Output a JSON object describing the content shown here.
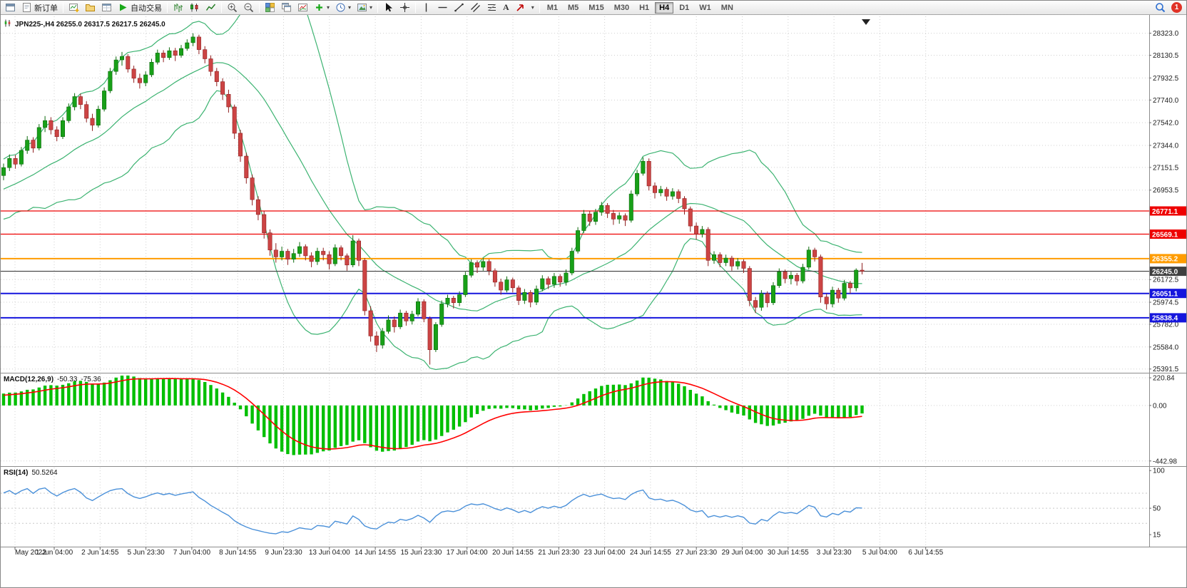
{
  "toolbar": {
    "new_order_label": "新订单",
    "auto_trading_label": "自动交易",
    "timeframes": [
      "M1",
      "M5",
      "M15",
      "M30",
      "H1",
      "H4",
      "D1",
      "W1",
      "MN"
    ],
    "active_timeframe": "H4",
    "notification_count": "1"
  },
  "chart": {
    "title": "JPN225-,H4 26255.0 26317.5 26217.5 26245.0"
  },
  "indicators": {
    "macd": {
      "name": "MACD(12,26,9)",
      "value_main": "-50.33",
      "value_signal": "-75.36",
      "axis": [
        "220.84",
        "0.00",
        "-442.98"
      ]
    },
    "rsi": {
      "name": "RSI(14)",
      "value": "50.5264",
      "axis": [
        "100",
        "50",
        "15"
      ],
      "levels": [
        70,
        50,
        30
      ]
    }
  },
  "chart_data": {
    "type": "candlestick",
    "symbol": "JPN225-",
    "timeframe": "H4",
    "last_ohlc": {
      "open": 26255.0,
      "high": 26317.5,
      "low": 26217.5,
      "close": 26245.0
    },
    "price_max": 28470,
    "price_min": 25365,
    "visible_from": 20,
    "price_axis": [
      "28323.0",
      "28130.5",
      "27932.5",
      "27740.0",
      "27542.0",
      "27344.0",
      "27151.5",
      "26953.5",
      "26172.5",
      "25974.5",
      "25782.0",
      "25584.0",
      "25391.5"
    ],
    "hlines": [
      {
        "value": 26771.1,
        "label": "26771.1",
        "color": "#ee0000",
        "width": 1.2
      },
      {
        "value": 26569.1,
        "label": "26569.1",
        "color": "#ee0000",
        "width": 1.2
      },
      {
        "value": 26355.2,
        "label": "26355.2",
        "color": "#ff9c00",
        "width": 2
      },
      {
        "value": 26245.0,
        "label": "26245.0",
        "color": "#3f3f3f",
        "width": 1.2
      },
      {
        "value": 26051.1,
        "label": "26051.1",
        "color": "#1515dd",
        "width": 2
      },
      {
        "value": 25838.4,
        "label": "25838.4",
        "color": "#1515dd",
        "width": 2
      }
    ],
    "time_labels": [
      "May 2022",
      "1 Jun 04:00",
      "2 Jun 14:55",
      "5 Jun 23:30",
      "7 Jun 04:00",
      "8 Jun 14:55",
      "9 Jun 23:30",
      "13 Jun 04:00",
      "14 Jun 14:55",
      "15 Jun 23:30",
      "17 Jun 04:00",
      "20 Jun 14:55",
      "21 Jun 23:30",
      "23 Jun 04:00",
      "24 Jun 14:55",
      "27 Jun 23:30",
      "29 Jun 04:00",
      "30 Jun 14:55",
      "3 Jul 23:30",
      "5 Jul 04:00",
      "6 Jul 14:55"
    ],
    "colors": {
      "bull": "#18a018",
      "bull_stroke": "#0c6b0c",
      "bear": "#cc4444",
      "bear_stroke": "#8f2020",
      "bollinger": "#3cb371",
      "macd_hist": "#00bf00",
      "macd_signal": "#ff0000",
      "rsi": "#4a90d9",
      "grid": "#d0d0d0",
      "axis_text": "#1c1c1c"
    },
    "ohlc": [
      [
        26700,
        26760,
        26660,
        26730
      ],
      [
        26730,
        26790,
        26700,
        26760
      ],
      [
        26760,
        26800,
        26690,
        26720
      ],
      [
        26720,
        26810,
        26700,
        26790
      ],
      [
        26790,
        26860,
        26760,
        26840
      ],
      [
        26840,
        26870,
        26760,
        26800
      ],
      [
        26800,
        26890,
        26780,
        26870
      ],
      [
        26870,
        26940,
        26850,
        26920
      ],
      [
        26920,
        26950,
        26840,
        26880
      ],
      [
        26880,
        26960,
        26860,
        26940
      ],
      [
        26940,
        27010,
        26910,
        26990
      ],
      [
        26990,
        27020,
        26900,
        26950
      ],
      [
        26950,
        27040,
        26930,
        27020
      ],
      [
        27020,
        27090,
        27000,
        27070
      ],
      [
        27070,
        27100,
        26990,
        27030
      ],
      [
        27030,
        27110,
        27010,
        27090
      ],
      [
        27090,
        27160,
        27060,
        27140
      ],
      [
        27140,
        27170,
        27040,
        27080
      ],
      [
        27080,
        27150,
        27050,
        27120
      ],
      [
        27120,
        27160,
        27030,
        27080
      ],
      [
        27080,
        27185,
        27040,
        27150
      ],
      [
        27150,
        27265,
        27120,
        27230
      ],
      [
        27230,
        27260,
        27140,
        27180
      ],
      [
        27180,
        27330,
        27160,
        27300
      ],
      [
        27300,
        27425,
        27270,
        27390
      ],
      [
        27390,
        27415,
        27280,
        27320
      ],
      [
        27320,
        27530,
        27300,
        27500
      ],
      [
        27500,
        27600,
        27460,
        27560
      ],
      [
        27560,
        27590,
        27440,
        27480
      ],
      [
        27480,
        27510,
        27380,
        27420
      ],
      [
        27420,
        27590,
        27400,
        27560
      ],
      [
        27560,
        27710,
        27540,
        27680
      ],
      [
        27680,
        27800,
        27650,
        27770
      ],
      [
        27770,
        27795,
        27660,
        27700
      ],
      [
        27700,
        27730,
        27545,
        27580
      ],
      [
        27580,
        27620,
        27470,
        27520
      ],
      [
        27520,
        27690,
        27500,
        27660
      ],
      [
        27660,
        27850,
        27640,
        27820
      ],
      [
        27820,
        28020,
        27800,
        27990
      ],
      [
        27990,
        28120,
        27960,
        28090
      ],
      [
        28090,
        28160,
        28040,
        28120
      ],
      [
        28120,
        28140,
        27980,
        28010
      ],
      [
        28010,
        28040,
        27890,
        27930
      ],
      [
        27930,
        27970,
        27840,
        27890
      ],
      [
        27890,
        27990,
        27860,
        27960
      ],
      [
        27960,
        28100,
        27940,
        28070
      ],
      [
        28070,
        28180,
        28050,
        28150
      ],
      [
        28150,
        28175,
        28070,
        28110
      ],
      [
        28110,
        28200,
        28090,
        28170
      ],
      [
        28170,
        28195,
        28080,
        28130
      ],
      [
        28130,
        28220,
        28110,
        28190
      ],
      [
        28190,
        28270,
        28170,
        28240
      ],
      [
        28240,
        28323,
        28210,
        28290
      ],
      [
        28290,
        28310,
        28140,
        28180
      ],
      [
        28180,
        28210,
        28060,
        28100
      ],
      [
        28100,
        28130,
        27950,
        27990
      ],
      [
        27990,
        28020,
        27860,
        27900
      ],
      [
        27900,
        27930,
        27740,
        27790
      ],
      [
        27790,
        27830,
        27630,
        27680
      ],
      [
        27680,
        27700,
        27400,
        27450
      ],
      [
        27450,
        27480,
        27200,
        27250
      ],
      [
        27250,
        27280,
        27010,
        27060
      ],
      [
        27060,
        27090,
        26820,
        26870
      ],
      [
        26870,
        26900,
        26690,
        26740
      ],
      [
        26740,
        26770,
        26530,
        26580
      ],
      [
        26580,
        26610,
        26380,
        26430
      ],
      [
        26430,
        26490,
        26320,
        26370
      ],
      [
        26370,
        26460,
        26340,
        26420
      ],
      [
        26420,
        26440,
        26300,
        26350
      ],
      [
        26350,
        26440,
        26320,
        26400
      ],
      [
        26400,
        26500,
        26370,
        26460
      ],
      [
        26460,
        26480,
        26340,
        26380
      ],
      [
        26380,
        26410,
        26280,
        26330
      ],
      [
        26330,
        26450,
        26300,
        26420
      ],
      [
        26420,
        26450,
        26340,
        26390
      ],
      [
        26390,
        26420,
        26260,
        26310
      ],
      [
        26310,
        26480,
        26290,
        26450
      ],
      [
        26450,
        26470,
        26340,
        26380
      ],
      [
        26380,
        26400,
        26250,
        26300
      ],
      [
        26300,
        26560,
        26280,
        26510
      ],
      [
        26510,
        26530,
        26290,
        26340
      ],
      [
        26340,
        26360,
        25860,
        25900
      ],
      [
        25900,
        25940,
        25630,
        25680
      ],
      [
        25680,
        25720,
        25540,
        25600
      ],
      [
        25600,
        25750,
        25570,
        25720
      ],
      [
        25720,
        25860,
        25700,
        25820
      ],
      [
        25820,
        25850,
        25710,
        25760
      ],
      [
        25760,
        25910,
        25740,
        25880
      ],
      [
        25880,
        25900,
        25770,
        25810
      ],
      [
        25810,
        25900,
        25780,
        25870
      ],
      [
        25870,
        26010,
        25850,
        25980
      ],
      [
        25980,
        26000,
        25800,
        25830
      ],
      [
        25830,
        25850,
        25430,
        25560
      ],
      [
        25560,
        25800,
        25540,
        25780
      ],
      [
        25780,
        25990,
        25760,
        25960
      ],
      [
        25960,
        26040,
        25930,
        26010
      ],
      [
        26010,
        26030,
        25920,
        25970
      ],
      [
        25970,
        26070,
        25940,
        26040
      ],
      [
        26040,
        26240,
        26020,
        26210
      ],
      [
        26210,
        26350,
        26190,
        26320
      ],
      [
        26320,
        26340,
        26230,
        26280
      ],
      [
        26280,
        26360,
        26250,
        26330
      ],
      [
        26330,
        26350,
        26210,
        26250
      ],
      [
        26250,
        26270,
        26110,
        26150
      ],
      [
        26150,
        26180,
        26040,
        26080
      ],
      [
        26080,
        26200,
        26060,
        26170
      ],
      [
        26170,
        26190,
        26060,
        26100
      ],
      [
        26100,
        26120,
        25950,
        25990
      ],
      [
        25990,
        26090,
        25960,
        26060
      ],
      [
        26060,
        26080,
        25930,
        25975
      ],
      [
        25975,
        26120,
        25950,
        26090
      ],
      [
        26090,
        26210,
        26070,
        26180
      ],
      [
        26180,
        26200,
        26090,
        26130
      ],
      [
        26130,
        26230,
        26100,
        26200
      ],
      [
        26200,
        26220,
        26110,
        26150
      ],
      [
        26150,
        26260,
        26120,
        26230
      ],
      [
        26230,
        26450,
        26210,
        26420
      ],
      [
        26420,
        26630,
        26400,
        26600
      ],
      [
        26600,
        26780,
        26580,
        26745
      ],
      [
        26745,
        26770,
        26640,
        26680
      ],
      [
        26680,
        26790,
        26650,
        26760
      ],
      [
        26760,
        26850,
        26730,
        26820
      ],
      [
        26820,
        26840,
        26710,
        26750
      ],
      [
        26750,
        26780,
        26650,
        26700
      ],
      [
        26700,
        26760,
        26660,
        26730
      ],
      [
        26730,
        26750,
        26640,
        26690
      ],
      [
        26690,
        26950,
        26670,
        26920
      ],
      [
        26920,
        27130,
        26900,
        27100
      ],
      [
        27100,
        27240,
        27080,
        27205
      ],
      [
        27205,
        27230,
        26950,
        26990
      ],
      [
        26990,
        27020,
        26880,
        26930
      ],
      [
        26930,
        26990,
        26900,
        26960
      ],
      [
        26960,
        26980,
        26860,
        26900
      ],
      [
        26900,
        26970,
        26870,
        26940
      ],
      [
        26940,
        26960,
        26840,
        26880
      ],
      [
        26880,
        26900,
        26740,
        26790
      ],
      [
        26790,
        26810,
        26590,
        26640
      ],
      [
        26640,
        26670,
        26520,
        26570
      ],
      [
        26570,
        26640,
        26540,
        26610
      ],
      [
        26610,
        26630,
        26290,
        26340
      ],
      [
        26340,
        26420,
        26310,
        26390
      ],
      [
        26390,
        26410,
        26280,
        26320
      ],
      [
        26320,
        26390,
        26290,
        26360
      ],
      [
        26360,
        26380,
        26250,
        26290
      ],
      [
        26290,
        26360,
        26260,
        26330
      ],
      [
        26330,
        26350,
        26230,
        26270
      ],
      [
        26270,
        26290,
        25940,
        25990
      ],
      [
        25990,
        26020,
        25880,
        25930
      ],
      [
        25930,
        26080,
        25900,
        26050
      ],
      [
        26050,
        26070,
        25930,
        25970
      ],
      [
        25970,
        26150,
        25950,
        26120
      ],
      [
        26120,
        26270,
        26100,
        26240
      ],
      [
        26240,
        26260,
        26140,
        26180
      ],
      [
        26180,
        26240,
        26130,
        26210
      ],
      [
        26210,
        26230,
        26120,
        26160
      ],
      [
        26160,
        26310,
        26140,
        26280
      ],
      [
        26280,
        26460,
        26260,
        26430
      ],
      [
        26430,
        26450,
        26330,
        26370
      ],
      [
        26370,
        26390,
        25970,
        26020
      ],
      [
        26020,
        26050,
        25910,
        25960
      ],
      [
        25960,
        26110,
        25930,
        26080
      ],
      [
        26080,
        26100,
        25970,
        26010
      ],
      [
        26010,
        26170,
        25990,
        26140
      ],
      [
        26140,
        26160,
        26050,
        26100
      ],
      [
        26100,
        26270,
        26070,
        26255
      ],
      [
        26255,
        26317.5,
        26217.5,
        26245
      ]
    ]
  }
}
